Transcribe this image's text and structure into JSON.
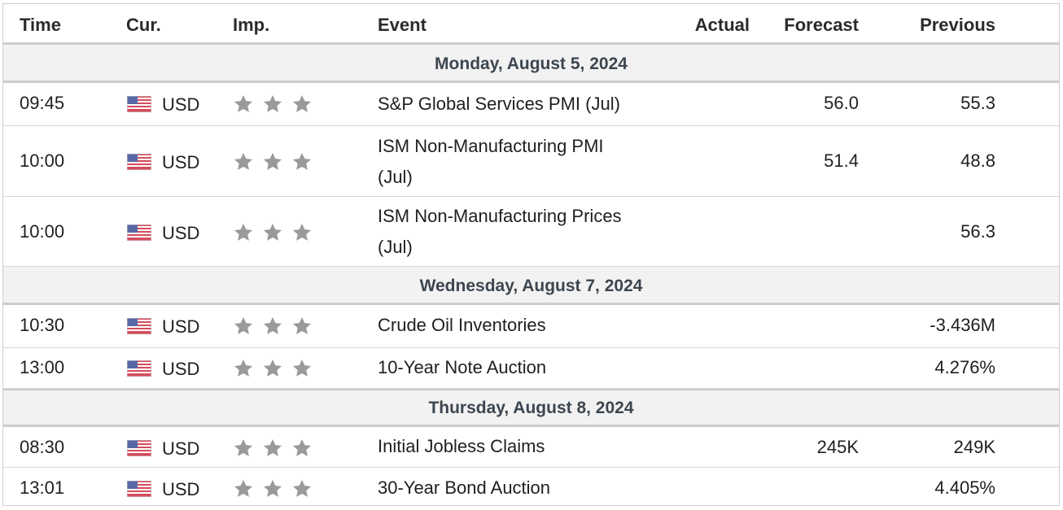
{
  "header": {
    "time": "Time",
    "cur": "Cur.",
    "imp": "Imp.",
    "event": "Event",
    "actual": "Actual",
    "forecast": "Forecast",
    "previous": "Previous"
  },
  "colors": {
    "star": "#9a9a9a",
    "day_bg": "#f2f2f2"
  },
  "groups": [
    {
      "day": "Monday, August 5, 2024",
      "rows": [
        {
          "time": "09:45",
          "currency": "USD",
          "event_line1": "S&P Global Services PMI (Jul)",
          "event_line2": "",
          "actual": "",
          "forecast": "56.0",
          "previous": "55.3"
        },
        {
          "time": "10:00",
          "currency": "USD",
          "event_line1": "ISM Non-Manufacturing PMI",
          "event_line2": "(Jul)",
          "actual": "",
          "forecast": "51.4",
          "previous": "48.8"
        },
        {
          "time": "10:00",
          "currency": "USD",
          "event_line1": "ISM Non-Manufacturing Prices",
          "event_line2": "(Jul)",
          "actual": "",
          "forecast": "",
          "previous": "56.3"
        }
      ]
    },
    {
      "day": "Wednesday, August 7, 2024",
      "rows": [
        {
          "time": "10:30",
          "currency": "USD",
          "event_line1": "Crude Oil Inventories",
          "event_line2": "",
          "actual": "",
          "forecast": "",
          "previous": "-3.436M"
        },
        {
          "time": "13:00",
          "currency": "USD",
          "event_line1": "10-Year Note Auction",
          "event_line2": "",
          "actual": "",
          "forecast": "",
          "previous": "4.276%"
        }
      ]
    },
    {
      "day": "Thursday, August 8, 2024",
      "rows": [
        {
          "time": "08:30",
          "currency": "USD",
          "event_line1": "Initial Jobless Claims",
          "event_line2": "",
          "actual": "",
          "forecast": "245K",
          "previous": "249K"
        },
        {
          "time": "13:01",
          "currency": "USD",
          "event_line1": "30-Year Bond Auction",
          "event_line2": "",
          "actual": "",
          "forecast": "",
          "previous": "4.405%"
        }
      ]
    }
  ]
}
